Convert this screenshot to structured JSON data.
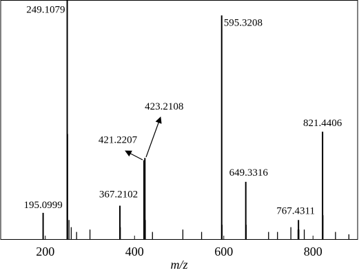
{
  "chart_data": {
    "type": "stem",
    "x_label": "m/z",
    "xlim": [
      100,
      900
    ],
    "xticks": [
      200,
      400,
      600,
      800
    ],
    "ylim": [
      0,
      100
    ],
    "color": "#000000",
    "x": [
      195.0999,
      249.1079,
      367.2102,
      421.2207,
      423.2108,
      595.3208,
      649.3316,
      767.4311,
      821.4406
    ],
    "values": [
      11,
      100,
      14,
      33,
      34,
      93.7,
      24,
      8,
      45
    ],
    "minor_x": [
      250.11,
      253.1,
      258.1,
      270.1,
      300.1,
      368.2,
      422.2,
      424.2,
      440.2,
      508.3,
      550.3,
      596.3,
      650.3,
      700.4,
      720.4,
      750.4,
      766.4,
      768.4,
      780.4,
      822.4,
      850.4,
      880.4
    ],
    "minor_values": [
      44,
      8,
      5,
      3,
      4,
      5,
      31,
      8,
      3,
      4,
      3,
      6,
      6,
      3,
      3,
      5,
      4,
      4,
      4,
      10,
      3,
      2
    ]
  }
}
